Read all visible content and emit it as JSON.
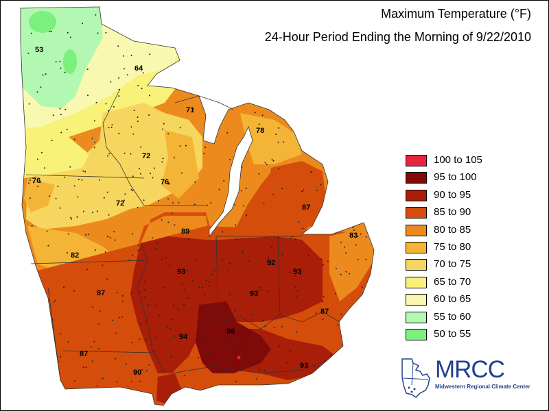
{
  "title": "Maximum Temperature (°F)",
  "subtitle": "24-Hour Period Ending the Morning of 9/22/2010",
  "legend": [
    {
      "label": "100 to 105",
      "color": "#e8213f"
    },
    {
      "label": "95 to 100",
      "color": "#7e0a0a"
    },
    {
      "label": "90 to 95",
      "color": "#a81e08"
    },
    {
      "label": "85 to 90",
      "color": "#d54d0a"
    },
    {
      "label": "80 to 85",
      "color": "#ec8a1d"
    },
    {
      "label": "75 to 80",
      "color": "#f4b436"
    },
    {
      "label": "70 to 75",
      "color": "#f6d65e"
    },
    {
      "label": "65 to 70",
      "color": "#f8f279"
    },
    {
      "label": "60 to 65",
      "color": "#f8f8b0"
    },
    {
      "label": "55 to 60",
      "color": "#b2f8b2"
    },
    {
      "label": "50 to 55",
      "color": "#7cf07c"
    }
  ],
  "station_labels": [
    "53",
    "64",
    "71",
    "78",
    "72",
    "76",
    "76",
    "72",
    "87",
    "83",
    "89",
    "82",
    "92",
    "93",
    "93",
    "87",
    "93",
    "87",
    "94",
    "96",
    "87",
    "90",
    "93"
  ],
  "logo": {
    "name": "MRCC",
    "full_name": "Midwestern Regional Climate Center"
  }
}
